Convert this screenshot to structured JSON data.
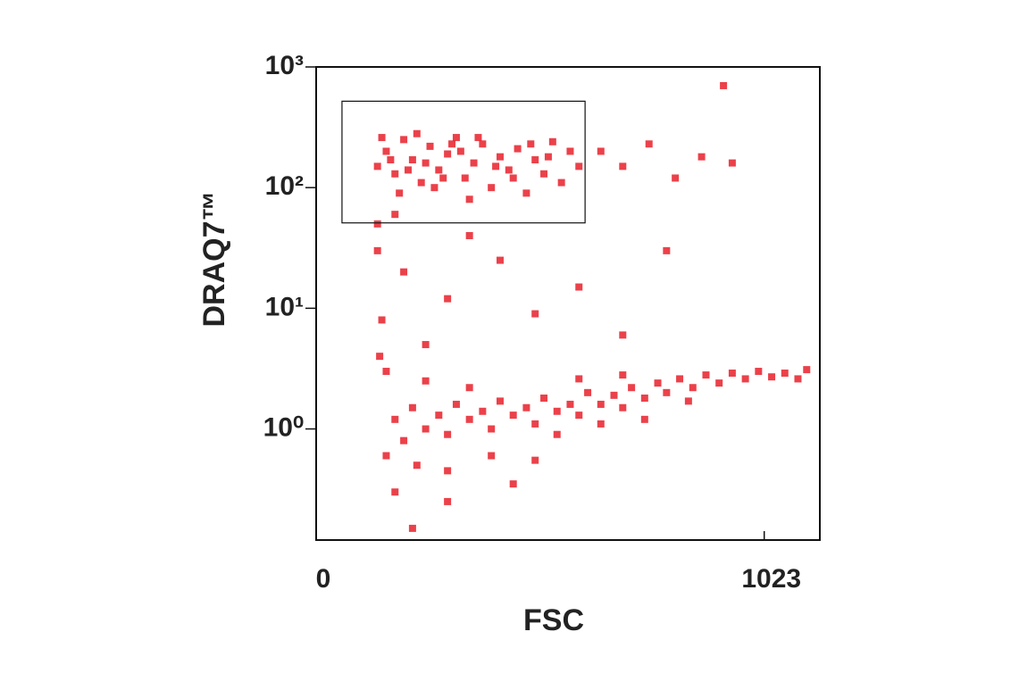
{
  "chart_data": {
    "type": "scatter",
    "x_label": "FSC",
    "y_label": "DRAQ7™",
    "color": "#e8202a",
    "xlim": [
      0,
      1150
    ],
    "xticks": [
      0,
      1023
    ],
    "ylim": [
      0.12,
      1000
    ],
    "log_y": true,
    "yticks": [
      {
        "value": 1,
        "label": "10⁰"
      },
      {
        "value": 10,
        "label": "10¹"
      },
      {
        "value": 100,
        "label": "10²"
      },
      {
        "value": 1000,
        "label": "10³"
      }
    ],
    "gate": {
      "x": [
        59,
        614
      ],
      "y": [
        51,
        520
      ]
    },
    "x": [
      140,
      160,
      180,
      200,
      220,
      240,
      260,
      280,
      300,
      320,
      340,
      360,
      380,
      400,
      420,
      440,
      460,
      480,
      500,
      520,
      540,
      560,
      580,
      600,
      150,
      190,
      230,
      270,
      310,
      350,
      170,
      210,
      250,
      290,
      330,
      370,
      410,
      450,
      490,
      530,
      650,
      700,
      760,
      820,
      880,
      950,
      930,
      140,
      150,
      160,
      200,
      250,
      300,
      350,
      180,
      420,
      500,
      600,
      700,
      800,
      140,
      145,
      180,
      200,
      220,
      250,
      280,
      300,
      320,
      350,
      380,
      400,
      420,
      450,
      480,
      500,
      520,
      550,
      580,
      600,
      620,
      650,
      680,
      700,
      720,
      750,
      780,
      800,
      830,
      860,
      890,
      920,
      950,
      980,
      1010,
      1040,
      1070,
      1100,
      1120,
      160,
      230,
      300,
      400,
      500,
      250,
      350,
      550,
      650,
      750,
      850,
      600,
      700,
      220,
      180,
      300,
      450
    ],
    "values": [
      150,
      200,
      130,
      250,
      170,
      110,
      220,
      140,
      190,
      260,
      120,
      160,
      230,
      100,
      180,
      140,
      210,
      90,
      170,
      130,
      240,
      110,
      200,
      150,
      260,
      90,
      280,
      100,
      230,
      80,
      170,
      140,
      160,
      120,
      200,
      260,
      150,
      120,
      230,
      180,
      200,
      150,
      230,
      120,
      180,
      160,
      700,
      30,
      8,
      3,
      20,
      5,
      12,
      40,
      60,
      25,
      9,
      15,
      6,
      30,
      50,
      4,
      1.2,
      0.8,
      1.5,
      1.0,
      1.3,
      0.9,
      1.6,
      1.2,
      1.4,
      1.0,
      1.7,
      1.3,
      1.5,
      1.1,
      1.8,
      1.4,
      1.6,
      1.3,
      2.0,
      1.6,
      1.9,
      1.5,
      2.2,
      1.8,
      2.4,
      2.0,
      2.6,
      2.2,
      2.8,
      2.4,
      2.9,
      2.6,
      3.0,
      2.7,
      2.9,
      2.6,
      3.1,
      0.6,
      0.5,
      0.45,
      0.6,
      0.55,
      2.5,
      2.2,
      0.9,
      1.1,
      1.2,
      1.7,
      2.6,
      2.8,
      0.15,
      0.3,
      0.25,
      0.35
    ]
  }
}
